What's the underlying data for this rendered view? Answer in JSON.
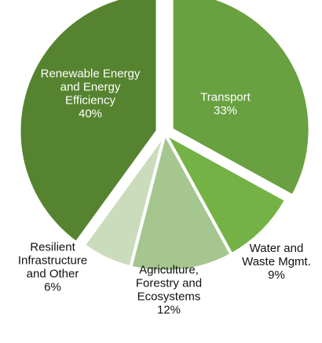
{
  "chart_data": {
    "type": "pie",
    "title": "",
    "start_angle_deg": 0,
    "direction": "clockwise",
    "slices": [
      {
        "label_lines": [
          "Transport",
          "33%"
        ],
        "value": 33,
        "color": "#69a040",
        "label_color": "#ffffff",
        "label_position": "inside",
        "exploded": true
      },
      {
        "label_lines": [
          "Water and",
          "Waste Mgmt.",
          "9%"
        ],
        "value": 9,
        "color": "#74b245",
        "label_color": "#111111",
        "label_position": "outside",
        "exploded": false
      },
      {
        "label_lines": [
          "Agriculture,",
          "Forestry and",
          "Ecosystems",
          "12%"
        ],
        "value": 12,
        "color": "#a6c690",
        "label_color": "#111111",
        "label_position": "outside",
        "exploded": false
      },
      {
        "label_lines": [
          "Resilient",
          "Infrastructure",
          "and Other",
          "6%"
        ],
        "value": 6,
        "color": "#cbdcbd",
        "label_color": "#111111",
        "label_position": "outside",
        "exploded": false
      },
      {
        "label_lines": [
          "Renewable Energy",
          "and Energy",
          "Efficiency",
          "40%"
        ],
        "value": 40,
        "color": "#55832f",
        "label_color": "#ffffff",
        "label_position": "inside",
        "exploded": true
      }
    ]
  }
}
